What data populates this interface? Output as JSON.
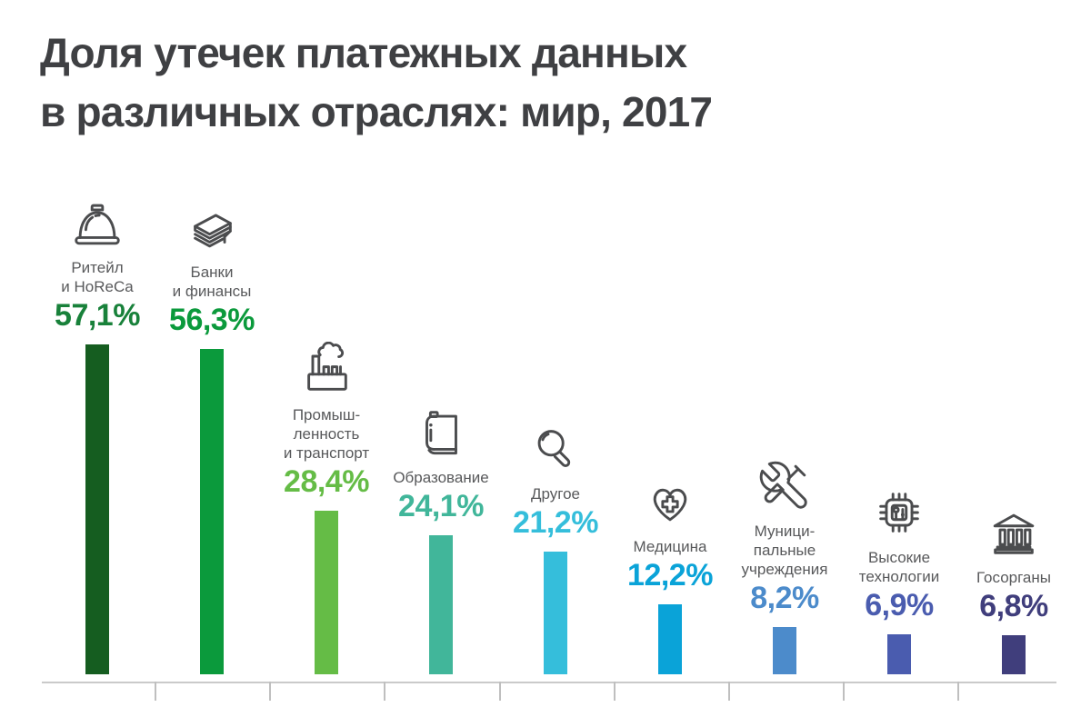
{
  "title": {
    "line1": "Доля утечек платежных данных",
    "line2": "в различных отраслях: мир, 2017",
    "color": "#3f4043"
  },
  "axis": {
    "line_color": "#cacaca",
    "tick_color": "#bfbfbf"
  },
  "chart_data": {
    "type": "bar",
    "title": "Доля утечек платежных данных в различных отраслях: мир, 2017",
    "xlabel": "",
    "ylabel": "",
    "ylim": [
      0,
      60
    ],
    "grid": false,
    "legend": "none",
    "value_format": "percent with comma decimal separator",
    "categories": [
      "Ритейл и HoReCa",
      "Банки и финансы",
      "Промышленность и транспорт",
      "Образование",
      "Другое",
      "Медицина",
      "Муниципальные учреждения",
      "Высокие технологии",
      "Госорганы"
    ],
    "values": [
      57.1,
      56.3,
      28.4,
      24.1,
      21.2,
      12.2,
      8.2,
      6.9,
      6.8
    ],
    "items": [
      {
        "label_lines": [
          "Ритейл",
          "и HoReCa"
        ],
        "value": 57.1,
        "value_label": "57,1%",
        "bar_color": "#155d20",
        "value_color": "#18813a",
        "icon": "cloche-icon"
      },
      {
        "label_lines": [
          "Банки",
          "и финансы"
        ],
        "value": 56.3,
        "value_label": "56,3%",
        "bar_color": "#0b9a3c",
        "value_color": "#0b9a3c",
        "icon": "banknotes-icon"
      },
      {
        "label_lines": [
          "Промыш-",
          "ленность",
          "и транспорт"
        ],
        "value": 28.4,
        "value_label": "28,4%",
        "bar_color": "#65bc46",
        "value_color": "#65bc46",
        "icon": "factory-icon"
      },
      {
        "label_lines": [
          "Образование"
        ],
        "value": 24.1,
        "value_label": "24,1%",
        "bar_color": "#41b69a",
        "value_color": "#41b69a",
        "icon": "book-icon"
      },
      {
        "label_lines": [
          "Другое"
        ],
        "value": 21.2,
        "value_label": "21,2%",
        "bar_color": "#35bedb",
        "value_color": "#35bedb",
        "icon": "magnifier-icon"
      },
      {
        "label_lines": [
          "Медицина"
        ],
        "value": 12.2,
        "value_label": "12,2%",
        "bar_color": "#0aa3d8",
        "value_color": "#0aa3d8",
        "icon": "heart-cross-icon"
      },
      {
        "label_lines": [
          "Муници-",
          "пальные",
          "учреждения"
        ],
        "value": 8.2,
        "value_label": "8,2%",
        "bar_color": "#4c8bcb",
        "value_color": "#4c8bcb",
        "icon": "tools-icon"
      },
      {
        "label_lines": [
          "Высокие",
          "технологии"
        ],
        "value": 6.9,
        "value_label": "6,9%",
        "bar_color": "#4a5caf",
        "value_color": "#4a5caf",
        "icon": "chip-icon"
      },
      {
        "label_lines": [
          "Госорганы"
        ],
        "value": 6.8,
        "value_label": "6,8%",
        "bar_color": "#403e7c",
        "value_color": "#403e7c",
        "icon": "bank-icon"
      }
    ]
  }
}
